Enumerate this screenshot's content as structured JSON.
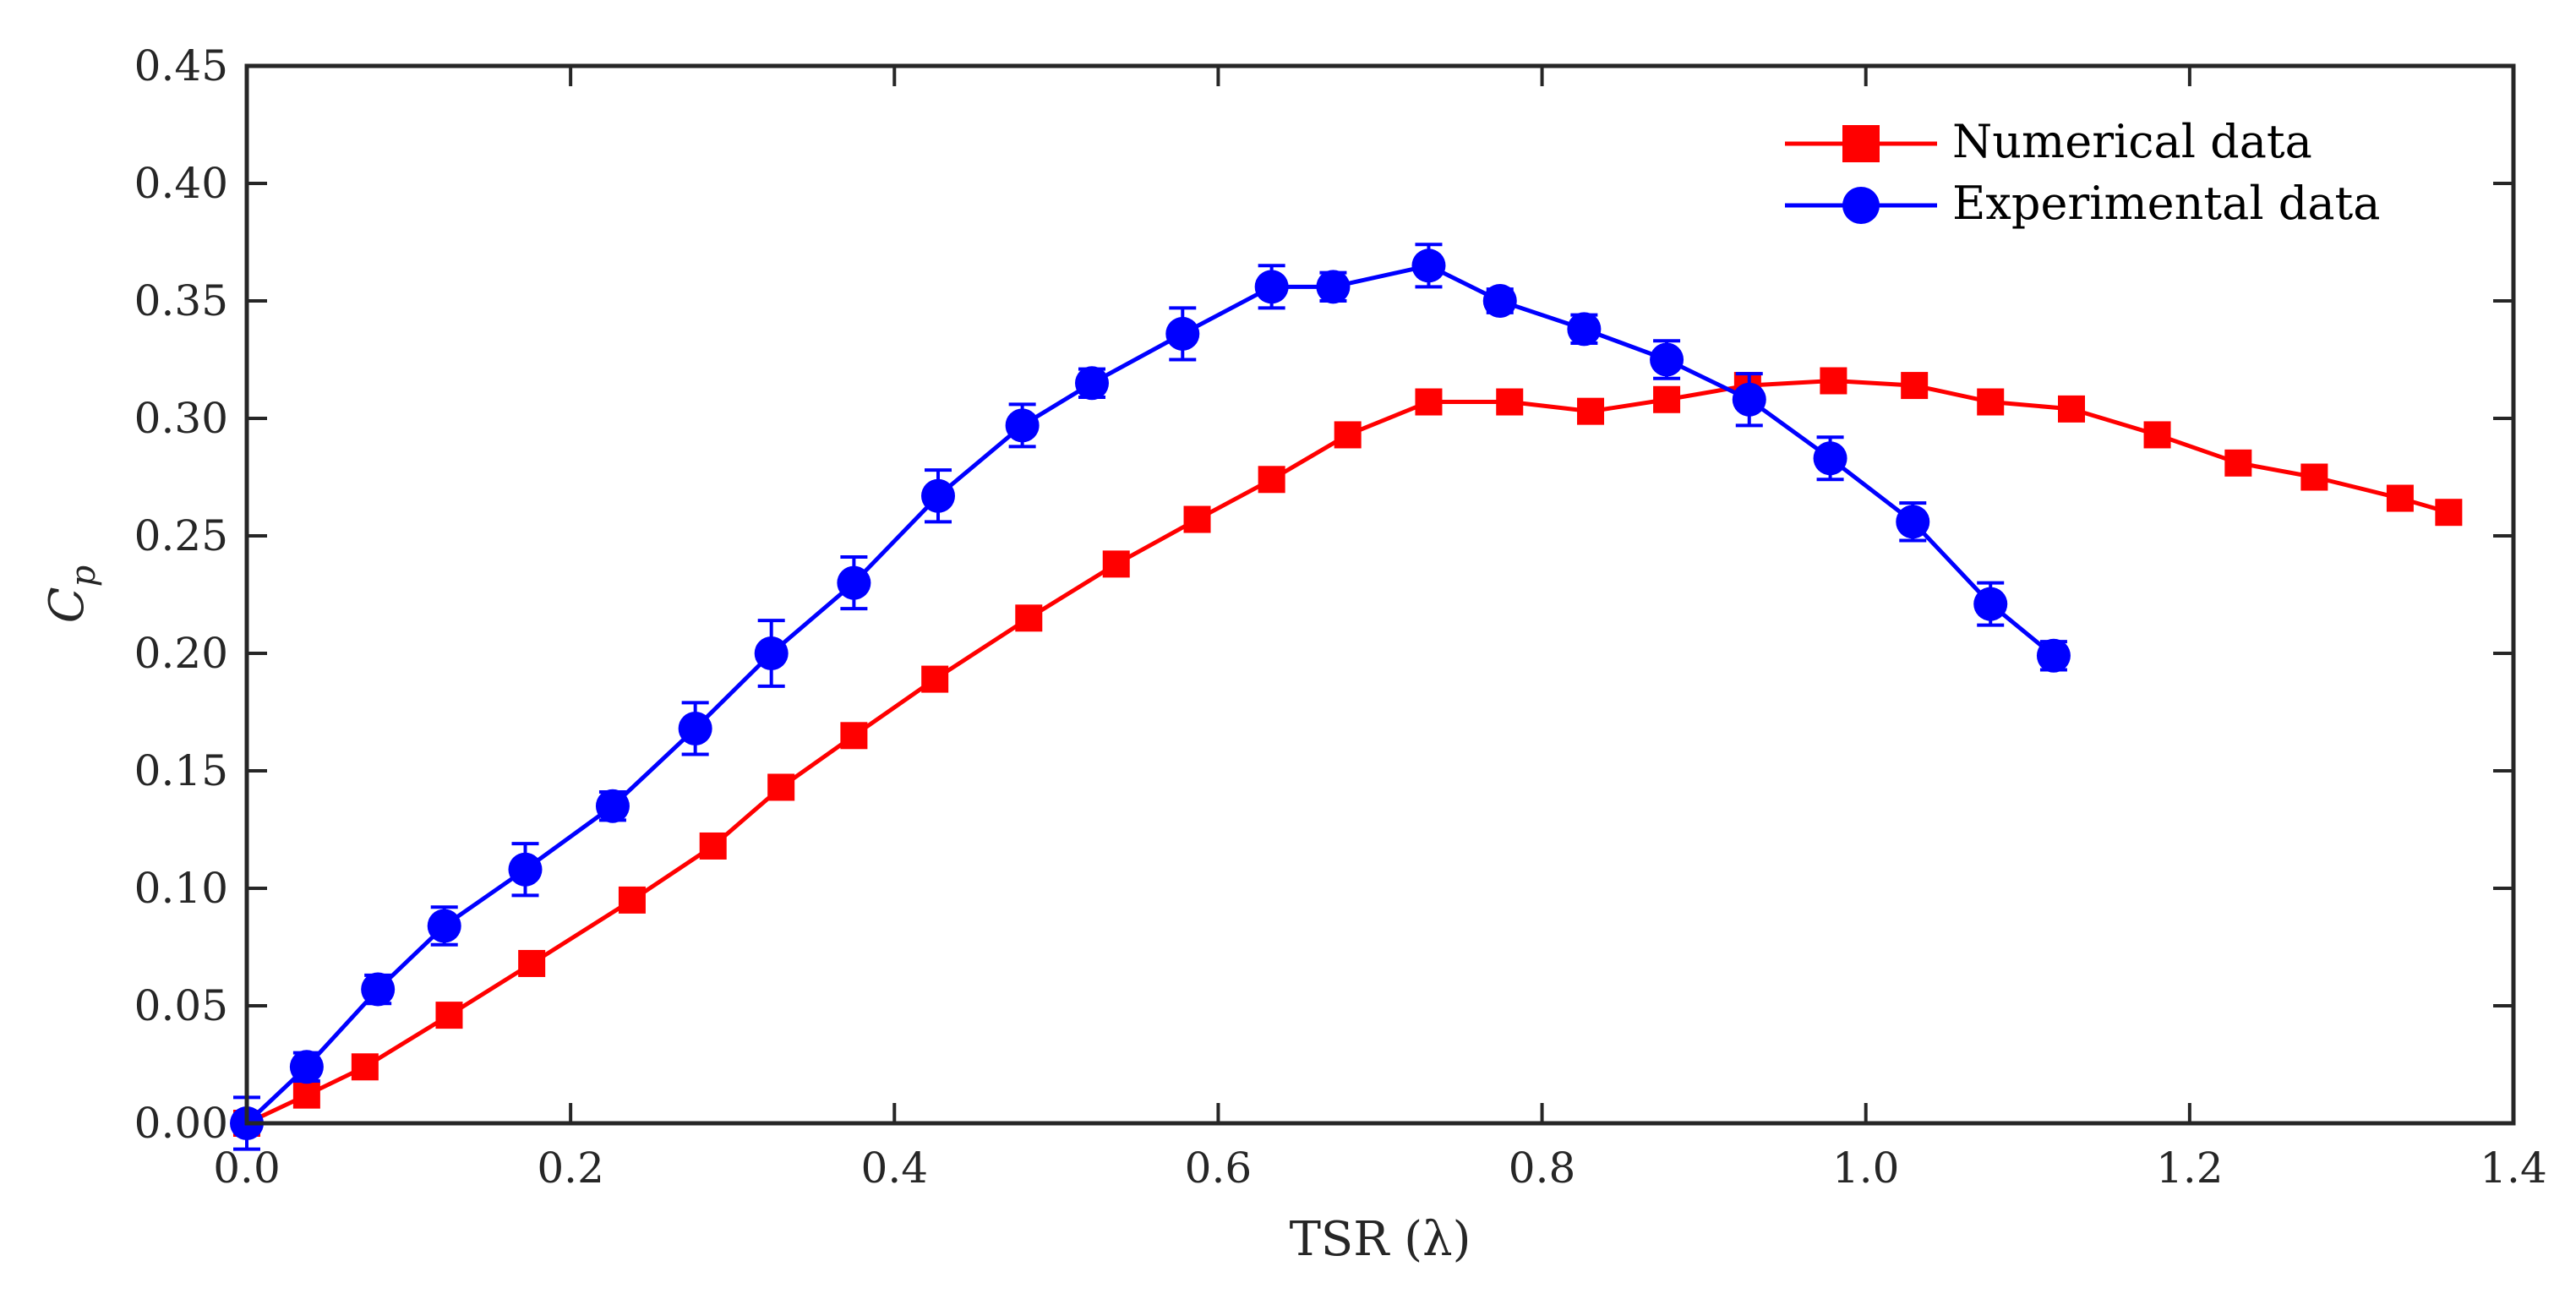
{
  "chart_data": {
    "type": "line",
    "title": "",
    "xlabel": "TSR (λ)",
    "ylabel": "Cp",
    "ylabel_main": "C",
    "ylabel_sub": "p",
    "xlim": [
      0,
      1.4
    ],
    "ylim": [
      0,
      0.45
    ],
    "xticks": [
      0.0,
      0.2,
      0.4,
      0.6,
      0.8,
      1.0,
      1.2,
      1.4
    ],
    "xtick_labels": [
      "0.0",
      "0.2",
      "0.4",
      "0.6",
      "0.8",
      "1.0",
      "1.2",
      "1.4"
    ],
    "yticks": [
      0.0,
      0.05,
      0.1,
      0.15,
      0.2,
      0.25,
      0.3,
      0.35,
      0.4,
      0.45
    ],
    "ytick_labels": [
      "0.00",
      "0.05",
      "0.10",
      "0.15",
      "0.20",
      "0.25",
      "0.30",
      "0.35",
      "0.40",
      "0.45"
    ],
    "grid": false,
    "legend_position": "top-right",
    "series": [
      {
        "name": "Numerical data",
        "color": "#ff0000",
        "marker": "square",
        "x": [
          0.0,
          0.037,
          0.073,
          0.125,
          0.176,
          0.238,
          0.288,
          0.33,
          0.375,
          0.425,
          0.483,
          0.537,
          0.587,
          0.633,
          0.68,
          0.73,
          0.78,
          0.83,
          0.877,
          0.927,
          0.98,
          1.03,
          1.077,
          1.127,
          1.18,
          1.23,
          1.277,
          1.33,
          1.36
        ],
        "y": [
          0.0,
          0.012,
          0.024,
          0.046,
          0.068,
          0.095,
          0.118,
          0.143,
          0.165,
          0.189,
          0.215,
          0.238,
          0.257,
          0.274,
          0.293,
          0.307,
          0.307,
          0.303,
          0.308,
          0.314,
          0.316,
          0.314,
          0.307,
          0.304,
          0.293,
          0.281,
          0.275,
          0.266,
          0.26
        ]
      },
      {
        "name": "Experimental data",
        "color": "#0000ff",
        "marker": "circle",
        "x": [
          0.0,
          0.037,
          0.081,
          0.122,
          0.172,
          0.226,
          0.277,
          0.324,
          0.375,
          0.427,
          0.479,
          0.522,
          0.578,
          0.633,
          0.671,
          0.73,
          0.774,
          0.826,
          0.877,
          0.928,
          0.978,
          1.029,
          1.077,
          1.116
        ],
        "y": [
          0.0,
          0.024,
          0.057,
          0.084,
          0.108,
          0.135,
          0.168,
          0.2,
          0.23,
          0.267,
          0.297,
          0.315,
          0.336,
          0.356,
          0.356,
          0.365,
          0.35,
          0.338,
          0.325,
          0.308,
          0.283,
          0.256,
          0.221,
          0.199
        ],
        "err": [
          0.011,
          0.006,
          0.006,
          0.008,
          0.011,
          0.006,
          0.011,
          0.014,
          0.011,
          0.011,
          0.009,
          0.006,
          0.011,
          0.009,
          0.006,
          0.009,
          0.005,
          0.006,
          0.008,
          0.011,
          0.009,
          0.008,
          0.009,
          0.006
        ]
      }
    ]
  }
}
